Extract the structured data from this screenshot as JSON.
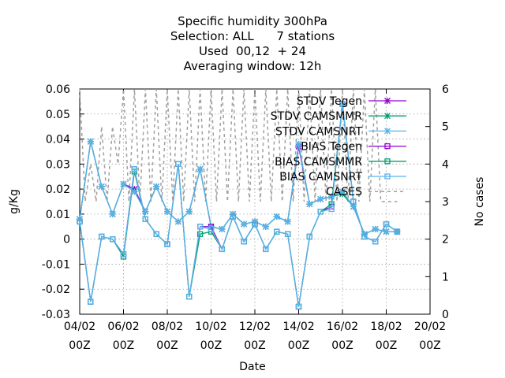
{
  "chart_data": {
    "type": "line",
    "title": [
      "Specific humidity 300hPa",
      "Selection: ALL      7 stations",
      "Used  00,12  + 24",
      "Averaging window: 12h"
    ],
    "xlabel": "Date",
    "ylabel": "g/Kg",
    "y2label": "No cases",
    "xlim": [
      0,
      16
    ],
    "ylim": [
      -0.03,
      0.06
    ],
    "y2lim": [
      0,
      6
    ],
    "x_ticks": [
      {
        "value": 0,
        "line1": "04/02",
        "line2": "00Z"
      },
      {
        "value": 2,
        "line1": "06/02",
        "line2": "00Z"
      },
      {
        "value": 4,
        "line1": "08/02",
        "line2": "00Z"
      },
      {
        "value": 6,
        "line1": "10/02",
        "line2": "00Z"
      },
      {
        "value": 8,
        "line1": "12/02",
        "line2": "00Z"
      },
      {
        "value": 10,
        "line1": "14/02",
        "line2": "00Z"
      },
      {
        "value": 12,
        "line1": "16/02",
        "line2": "00Z"
      },
      {
        "value": 14,
        "line1": "18/02",
        "line2": "00Z"
      },
      {
        "value": 16,
        "line1": "20/02",
        "line2": "00Z"
      }
    ],
    "y_ticks": [
      "0.06",
      "0.05",
      "0.04",
      "0.03",
      "0.02",
      "0.01",
      "0",
      "-0.01",
      "-0.02",
      "-0.03"
    ],
    "y2_ticks": [
      "6",
      "5",
      "4",
      "3",
      "2",
      "1",
      "0"
    ],
    "grid": true,
    "legend_position": "top-right",
    "x": [
      0,
      0.5,
      1,
      1.5,
      2,
      2.5,
      3,
      3.5,
      4,
      4.5,
      5,
      5.5,
      6,
      6.5,
      7,
      7.5,
      8,
      8.5,
      9,
      9.5,
      10,
      10.5,
      11,
      11.5,
      12,
      12.5,
      13,
      13.5,
      14,
      14.5
    ],
    "series": [
      {
        "name": "STDV Tegen",
        "color": "#9400d3",
        "marker": "x",
        "values": [
          0.008,
          0.039,
          0.021,
          0.01,
          0.022,
          0.02,
          0.011,
          0.021,
          0.011,
          0.007,
          0.011,
          0.028,
          0.005,
          0.004,
          0.01,
          0.006,
          0.007,
          0.005,
          0.009,
          0.007,
          0.037,
          0.014,
          0.016,
          0.017,
          0.019,
          0.013,
          0.002,
          0.004,
          0.003,
          0.003
        ]
      },
      {
        "name": "STDV CAMSMMR",
        "color": "#009e73",
        "marker": "x",
        "values": [
          0.008,
          0.039,
          0.021,
          0.01,
          0.022,
          0.019,
          0.011,
          0.021,
          0.011,
          0.007,
          0.011,
          0.028,
          0.005,
          0.004,
          0.01,
          0.006,
          0.007,
          0.005,
          0.009,
          0.007,
          0.038,
          0.014,
          0.016,
          0.017,
          0.018,
          0.013,
          0.002,
          0.004,
          0.003,
          0.003
        ]
      },
      {
        "name": "STDV CAMSNRT",
        "color": "#56b4e9",
        "marker": "x",
        "values": [
          0.008,
          0.039,
          0.021,
          0.01,
          0.022,
          0.019,
          0.011,
          0.021,
          0.011,
          0.007,
          0.011,
          0.028,
          0.005,
          0.004,
          0.01,
          0.006,
          0.007,
          0.005,
          0.009,
          0.007,
          0.038,
          0.014,
          0.016,
          0.017,
          0.019,
          0.013,
          0.002,
          0.004,
          0.003,
          0.003
        ]
      },
      {
        "name": "BIAS Tegen",
        "color": "#9400d3",
        "marker": "square",
        "values": [
          0.007,
          -0.025,
          0.001,
          0.0,
          -0.006,
          0.028,
          0.008,
          0.002,
          -0.002,
          0.03,
          -0.023,
          0.005,
          0.005,
          -0.004,
          0.009,
          -0.001,
          0.006,
          -0.004,
          0.003,
          0.002,
          -0.027,
          0.001,
          0.011,
          0.013,
          0.054,
          0.015,
          0.001,
          -0.001,
          0.006,
          0.003
        ]
      },
      {
        "name": "BIAS CAMSMMR",
        "color": "#009e73",
        "marker": "square",
        "values": [
          0.007,
          -0.025,
          0.001,
          0.0,
          -0.007,
          0.027,
          0.008,
          0.002,
          -0.002,
          0.03,
          -0.023,
          0.002,
          0.003,
          -0.004,
          0.009,
          -0.001,
          0.006,
          -0.004,
          0.003,
          0.002,
          -0.027,
          0.001,
          0.011,
          0.014,
          0.054,
          0.015,
          0.001,
          -0.001,
          0.006,
          0.003
        ]
      },
      {
        "name": "BIAS CAMSNRT",
        "color": "#56b4e9",
        "marker": "square",
        "values": [
          0.007,
          -0.025,
          0.001,
          0.0,
          -0.006,
          0.028,
          0.008,
          0.002,
          -0.002,
          0.03,
          -0.023,
          0.005,
          0.004,
          -0.004,
          0.009,
          -0.001,
          0.006,
          -0.004,
          0.003,
          0.002,
          -0.027,
          0.001,
          0.011,
          0.012,
          0.054,
          0.015,
          0.001,
          -0.001,
          0.006,
          0.003
        ]
      },
      {
        "name": "CASES",
        "color": "#a0a0a0",
        "dashed": true,
        "axis": "y2",
        "x": [
          0,
          0.25,
          0.5,
          0.75,
          1,
          1.25,
          1.5,
          1.75,
          2,
          2.25,
          2.5,
          2.75,
          3,
          3.25,
          3.5,
          3.75,
          4,
          4.25,
          4.5,
          4.75,
          5,
          5.25,
          5.5,
          5.75,
          6,
          6.25,
          6.5,
          6.75,
          7,
          7.25,
          7.5,
          7.75,
          8,
          8.25,
          8.5,
          8.75,
          9,
          9.25,
          9.5,
          9.75,
          10,
          10.25,
          10.5,
          10.75,
          11,
          11.25,
          11.5,
          11.75,
          12,
          12.25,
          12.5,
          12.75,
          13,
          13.25,
          13.5,
          13.75,
          14,
          14.25,
          14.5
        ],
        "values": [
          6,
          3,
          4,
          3,
          5,
          3,
          5,
          4,
          6,
          3,
          6,
          3,
          6,
          3,
          6,
          3,
          6,
          3,
          6,
          3,
          6,
          3,
          6,
          3,
          6,
          3,
          6,
          3,
          6,
          3,
          6,
          3,
          6,
          3,
          6,
          3,
          6,
          3,
          6,
          3,
          6,
          3,
          6,
          3,
          6,
          3,
          6,
          3,
          6,
          3,
          6,
          3,
          6,
          3,
          6,
          3,
          3,
          3,
          3
        ]
      }
    ]
  }
}
